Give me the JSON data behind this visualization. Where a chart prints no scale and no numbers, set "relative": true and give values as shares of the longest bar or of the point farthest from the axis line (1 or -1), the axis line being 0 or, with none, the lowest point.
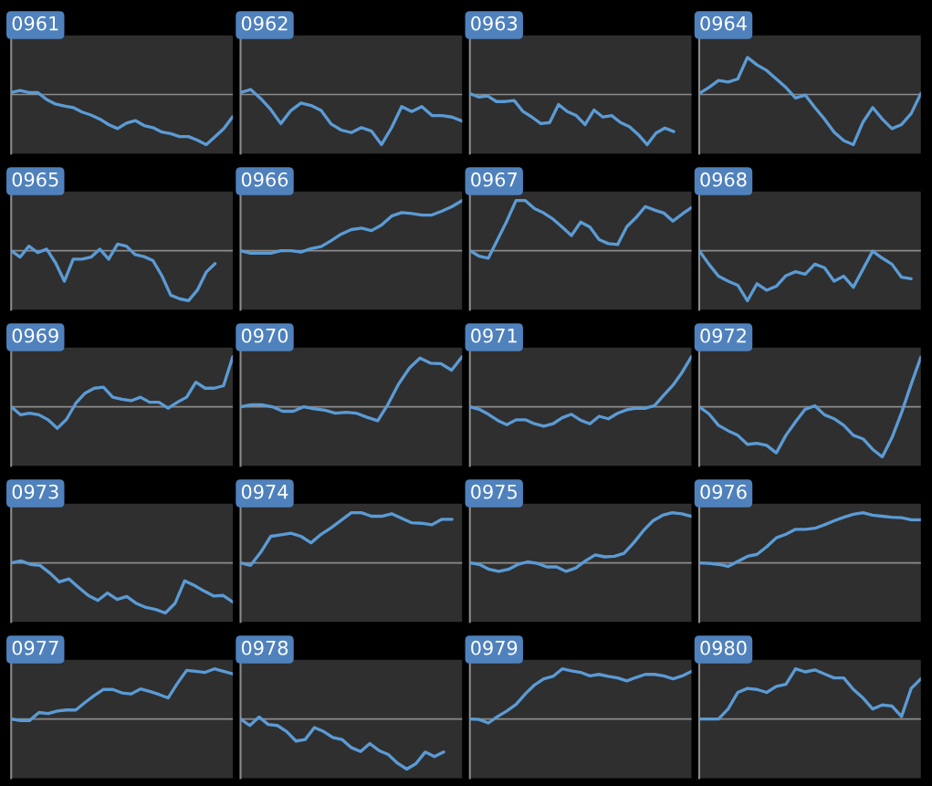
{
  "chart_data": [
    {
      "type": "line",
      "title": "0961",
      "relative": true,
      "color": "#5b9bd5",
      "ref_lines": [
        {
          "axis": "y",
          "value": 0,
          "color": "#8c8c8c"
        }
      ],
      "categories": [
        null,
        null,
        null,
        null,
        null,
        null,
        null,
        null,
        null,
        null,
        null,
        null,
        null,
        null,
        null,
        null,
        null,
        null,
        null,
        null,
        null,
        null,
        null,
        null,
        null,
        null
      ],
      "values": [
        0.04,
        0.08,
        0.04,
        0.04,
        -0.1,
        -0.19,
        -0.23,
        -0.26,
        -0.35,
        -0.41,
        -0.49,
        -0.6,
        -0.68,
        -0.57,
        -0.52,
        -0.62,
        -0.66,
        -0.75,
        -0.78,
        -0.84,
        -0.84,
        -0.91,
        -1,
        -0.84,
        -0.68,
        -0.44
      ]
    },
    {
      "type": "line",
      "title": "0962",
      "relative": true,
      "color": "#5b9bd5",
      "ref_lines": [
        {
          "axis": "y",
          "value": 0,
          "color": "#8c8c8c"
        }
      ],
      "categories": [
        null,
        null,
        null,
        null,
        null,
        null,
        null,
        null,
        null,
        null,
        null,
        null,
        null,
        null,
        null,
        null,
        null,
        null,
        null,
        null,
        null,
        null,
        null
      ],
      "values": [
        0.04,
        0.1,
        -0.08,
        -0.3,
        -0.58,
        -0.32,
        -0.17,
        -0.22,
        -0.32,
        -0.59,
        -0.71,
        -0.76,
        -0.66,
        -0.73,
        -1,
        -0.66,
        -0.24,
        -0.34,
        -0.24,
        -0.42,
        -0.42,
        -0.45,
        -0.53
      ]
    },
    {
      "type": "line",
      "title": "0963",
      "relative": true,
      "color": "#5b9bd5",
      "ref_lines": [
        {
          "axis": "y",
          "value": 0,
          "color": "#8c8c8c"
        }
      ],
      "categories": [
        null,
        null,
        null,
        null,
        null,
        null,
        null,
        null,
        null,
        null,
        null,
        null,
        null,
        null,
        null,
        null,
        null,
        null,
        null,
        null,
        null,
        null,
        null,
        null,
        null,
        null
      ],
      "values": [
        0.02,
        -0.05,
        -0.03,
        -0.14,
        -0.14,
        -0.12,
        -0.34,
        -0.45,
        -0.58,
        -0.56,
        -0.2,
        -0.34,
        -0.42,
        -0.6,
        -0.31,
        -0.45,
        -0.42,
        -0.56,
        -0.64,
        -0.8,
        -1,
        -0.77,
        -0.67,
        -0.74,
        null,
        null
      ]
    },
    {
      "type": "line",
      "title": "0964",
      "relative": true,
      "color": "#5b9bd5",
      "ref_lines": [
        {
          "axis": "y",
          "value": 0,
          "color": "#8c8c8c"
        }
      ],
      "categories": [
        null,
        null,
        null,
        null,
        null,
        null,
        null,
        null,
        null,
        null,
        null,
        null,
        null,
        null,
        null,
        null,
        null,
        null,
        null,
        null,
        null,
        null,
        null,
        null
      ],
      "values": [
        0.02,
        0.14,
        0.28,
        0.25,
        0.31,
        0.74,
        0.59,
        0.48,
        0.31,
        0.14,
        -0.07,
        -0.01,
        -0.26,
        -0.49,
        -0.75,
        -0.92,
        -1,
        -0.55,
        -0.26,
        -0.49,
        -0.68,
        -0.6,
        -0.38,
        0.02
      ]
    },
    {
      "type": "line",
      "title": "0965",
      "relative": true,
      "color": "#5b9bd5",
      "ref_lines": [
        {
          "axis": "y",
          "value": 0,
          "color": "#8c8c8c"
        }
      ],
      "categories": [
        null,
        null,
        null,
        null,
        null,
        null,
        null,
        null,
        null,
        null,
        null,
        null,
        null,
        null,
        null,
        null,
        null,
        null,
        null,
        null,
        null,
        null,
        null,
        null,
        null,
        null
      ],
      "values": [
        0,
        -0.13,
        0.09,
        -0.04,
        0.03,
        -0.24,
        -0.61,
        -0.17,
        -0.17,
        -0.13,
        0.03,
        -0.17,
        0.13,
        0.09,
        -0.08,
        -0.12,
        -0.2,
        -0.5,
        -0.89,
        -0.96,
        -1,
        -0.79,
        -0.43,
        -0.26,
        null,
        null
      ]
    },
    {
      "type": "line",
      "title": "0966",
      "relative": true,
      "color": "#5b9bd5",
      "ref_lines": [
        {
          "axis": "y",
          "value": 0,
          "color": "#8c8c8c"
        }
      ],
      "categories": [
        null,
        null,
        null,
        null,
        null,
        null,
        null,
        null,
        null,
        null,
        null,
        null,
        null,
        null,
        null,
        null,
        null,
        null,
        null,
        null,
        null,
        null,
        null
      ],
      "values": [
        0,
        -0.05,
        -0.05,
        -0.05,
        0,
        0,
        -0.03,
        0.04,
        0.08,
        0.2,
        0.33,
        0.42,
        0.45,
        0.4,
        0.51,
        0.69,
        0.76,
        0.74,
        0.71,
        0.71,
        0.79,
        0.88,
        1
      ]
    },
    {
      "type": "line",
      "title": "0967",
      "relative": true,
      "color": "#5b9bd5",
      "ref_lines": [
        {
          "axis": "y",
          "value": 0,
          "color": "#8c8c8c"
        }
      ],
      "categories": [
        null,
        null,
        null,
        null,
        null,
        null,
        null,
        null,
        null,
        null,
        null,
        null,
        null,
        null,
        null,
        null,
        null,
        null,
        null,
        null,
        null,
        null,
        null,
        null,
        null
      ],
      "values": [
        0,
        -0.11,
        -0.15,
        0.22,
        0.59,
        1,
        1,
        0.84,
        0.75,
        0.63,
        0.47,
        0.3,
        0.57,
        0.47,
        0.22,
        0.14,
        0.12,
        0.48,
        0.66,
        0.88,
        0.81,
        0.75,
        0.59,
        0.73,
        0.86
      ]
    },
    {
      "type": "line",
      "title": "0968",
      "relative": true,
      "color": "#5b9bd5",
      "ref_lines": [
        {
          "axis": "y",
          "value": 0,
          "color": "#8c8c8c"
        }
      ],
      "categories": [
        null,
        null,
        null,
        null,
        null,
        null,
        null,
        null,
        null,
        null,
        null,
        null,
        null,
        null,
        null,
        null,
        null,
        null,
        null,
        null,
        null,
        null,
        null,
        null
      ],
      "values": [
        0,
        -0.27,
        -0.51,
        -0.61,
        -0.69,
        -1,
        -0.66,
        -0.79,
        -0.71,
        -0.5,
        -0.42,
        -0.47,
        -0.27,
        -0.34,
        -0.61,
        -0.51,
        -0.73,
        -0.37,
        -0.01,
        -0.15,
        -0.27,
        -0.53,
        -0.56,
        null
      ]
    },
    {
      "type": "line",
      "title": "0969",
      "relative": true,
      "color": "#5b9bd5",
      "ref_lines": [
        {
          "axis": "y",
          "value": 0,
          "color": "#8c8c8c"
        }
      ],
      "categories": [
        null,
        null,
        null,
        null,
        null,
        null,
        null,
        null,
        null,
        null,
        null,
        null,
        null,
        null,
        null,
        null,
        null,
        null,
        null,
        null,
        null,
        null,
        null,
        null,
        null
      ],
      "values": [
        0,
        -0.16,
        -0.13,
        -0.16,
        -0.26,
        -0.43,
        -0.25,
        0.07,
        0.27,
        0.37,
        0.39,
        0.19,
        0.15,
        0.12,
        0.19,
        0.09,
        0.09,
        -0.03,
        0.09,
        0.19,
        0.49,
        0.37,
        0.37,
        0.42,
        1
      ]
    },
    {
      "type": "line",
      "title": "0970",
      "relative": true,
      "color": "#5b9bd5",
      "ref_lines": [
        {
          "axis": "y",
          "value": 0,
          "color": "#8c8c8c"
        }
      ],
      "categories": [
        null,
        null,
        null,
        null,
        null,
        null,
        null,
        null,
        null,
        null,
        null,
        null,
        null,
        null,
        null,
        null,
        null,
        null,
        null,
        null,
        null,
        null
      ],
      "values": [
        0,
        0.04,
        0.04,
        0,
        -0.09,
        -0.09,
        0,
        -0.04,
        -0.07,
        -0.13,
        -0.11,
        -0.13,
        -0.21,
        -0.28,
        0.06,
        0.46,
        0.77,
        0.97,
        0.87,
        0.86,
        0.73,
        1
      ]
    },
    {
      "type": "line",
      "title": "0971",
      "relative": true,
      "color": "#5b9bd5",
      "ref_lines": [
        {
          "axis": "y",
          "value": 0,
          "color": "#8c8c8c"
        }
      ],
      "categories": [
        null,
        null,
        null,
        null,
        null,
        null,
        null,
        null,
        null,
        null,
        null,
        null,
        null,
        null,
        null,
        null,
        null,
        null,
        null,
        null,
        null,
        null,
        null,
        null,
        null
      ],
      "values": [
        0,
        -0.05,
        -0.15,
        -0.27,
        -0.36,
        -0.26,
        -0.26,
        -0.34,
        -0.39,
        -0.34,
        -0.22,
        -0.15,
        -0.27,
        -0.34,
        -0.19,
        -0.24,
        -0.13,
        -0.06,
        -0.03,
        -0.03,
        0.02,
        0.23,
        0.43,
        0.69,
        1
      ]
    },
    {
      "type": "line",
      "title": "0972",
      "relative": true,
      "color": "#5b9bd5",
      "ref_lines": [
        {
          "axis": "y",
          "value": 0,
          "color": "#8c8c8c"
        }
      ],
      "categories": [
        null,
        null,
        null,
        null,
        null,
        null,
        null,
        null,
        null,
        null,
        null,
        null,
        null,
        null,
        null,
        null,
        null,
        null,
        null,
        null,
        null,
        null,
        null,
        null
      ],
      "values": [
        0,
        -0.14,
        -0.37,
        -0.48,
        -0.57,
        -0.75,
        -0.73,
        -0.77,
        -0.92,
        -0.57,
        -0.3,
        -0.05,
        0.02,
        -0.16,
        -0.24,
        -0.37,
        -0.57,
        -0.64,
        -0.85,
        -1,
        -0.62,
        -0.12,
        0.45,
        0.99
      ]
    },
    {
      "type": "line",
      "title": "0973",
      "relative": true,
      "color": "#5b9bd5",
      "ref_lines": [
        {
          "axis": "y",
          "value": 0,
          "color": "#8c8c8c"
        }
      ],
      "categories": [
        null,
        null,
        null,
        null,
        null,
        null,
        null,
        null,
        null,
        null,
        null,
        null,
        null,
        null,
        null,
        null,
        null,
        null,
        null,
        null,
        null,
        null,
        null,
        null
      ],
      "values": [
        0,
        0.04,
        -0.03,
        -0.05,
        -0.2,
        -0.38,
        -0.32,
        -0.49,
        -0.65,
        -0.75,
        -0.6,
        -0.73,
        -0.67,
        -0.81,
        -0.89,
        -0.93,
        -1,
        -0.81,
        -0.36,
        -0.45,
        -0.56,
        -0.66,
        -0.65,
        -0.78
      ]
    },
    {
      "type": "line",
      "title": "0974",
      "relative": true,
      "color": "#5b9bd5",
      "ref_lines": [
        {
          "axis": "y",
          "value": 0,
          "color": "#8c8c8c"
        }
      ],
      "categories": [
        null,
        null,
        null,
        null,
        null,
        null,
        null,
        null,
        null,
        null,
        null,
        null,
        null,
        null,
        null,
        null,
        null,
        null,
        null,
        null,
        null,
        null,
        null
      ],
      "values": [
        0,
        -0.05,
        0.21,
        0.53,
        0.56,
        0.59,
        0.53,
        0.4,
        0.57,
        0.7,
        0.85,
        1,
        1,
        0.93,
        0.93,
        0.98,
        0.89,
        0.8,
        0.79,
        0.76,
        0.87,
        0.87,
        null
      ]
    },
    {
      "type": "line",
      "title": "0975",
      "relative": true,
      "color": "#5b9bd5",
      "ref_lines": [
        {
          "axis": "y",
          "value": 0,
          "color": "#8c8c8c"
        }
      ],
      "categories": [
        null,
        null,
        null,
        null,
        null,
        null,
        null,
        null,
        null,
        null,
        null,
        null,
        null,
        null,
        null,
        null,
        null,
        null,
        null,
        null,
        null,
        null,
        null,
        null
      ],
      "values": [
        0,
        -0.03,
        -0.13,
        -0.17,
        -0.13,
        -0.03,
        0.02,
        -0.01,
        -0.08,
        -0.08,
        -0.17,
        -0.1,
        0.04,
        0.16,
        0.12,
        0.13,
        0.19,
        0.4,
        0.64,
        0.84,
        0.95,
        1,
        0.98,
        0.93
      ]
    },
    {
      "type": "line",
      "title": "0976",
      "relative": true,
      "color": "#5b9bd5",
      "ref_lines": [
        {
          "axis": "y",
          "value": 0,
          "color": "#8c8c8c"
        }
      ],
      "categories": [
        null,
        null,
        null,
        null,
        null,
        null,
        null,
        null,
        null,
        null,
        null,
        null,
        null,
        null,
        null,
        null,
        null,
        null,
        null,
        null,
        null,
        null,
        null,
        null
      ],
      "values": [
        0,
        -0.01,
        -0.03,
        -0.07,
        0.03,
        0.13,
        0.17,
        0.32,
        0.5,
        0.57,
        0.67,
        0.67,
        0.69,
        0.76,
        0.84,
        0.91,
        0.97,
        1,
        0.95,
        0.93,
        0.91,
        0.9,
        0.86,
        0.86
      ]
    },
    {
      "type": "line",
      "title": "0977",
      "relative": true,
      "color": "#5b9bd5",
      "ref_lines": [
        {
          "axis": "y",
          "value": 0,
          "color": "#8c8c8c"
        }
      ],
      "categories": [
        null,
        null,
        null,
        null,
        null,
        null,
        null,
        null,
        null,
        null,
        null,
        null,
        null,
        null,
        null,
        null,
        null,
        null,
        null,
        null,
        null,
        null,
        null,
        null,
        null
      ],
      "values": [
        0,
        -0.03,
        -0.03,
        0.13,
        0.11,
        0.16,
        0.18,
        0.18,
        0.33,
        0.47,
        0.59,
        0.59,
        0.52,
        0.5,
        0.6,
        0.55,
        0.49,
        0.42,
        0.71,
        0.97,
        0.95,
        0.93,
        1,
        0.95,
        0.9
      ]
    },
    {
      "type": "line",
      "title": "0978",
      "relative": true,
      "color": "#5b9bd5",
      "ref_lines": [
        {
          "axis": "y",
          "value": 0,
          "color": "#8c8c8c"
        }
      ],
      "categories": [
        null,
        null,
        null,
        null,
        null,
        null,
        null,
        null,
        null,
        null,
        null,
        null,
        null,
        null,
        null,
        null,
        null,
        null,
        null,
        null,
        null,
        null,
        null,
        null,
        null
      ],
      "values": [
        0,
        -0.13,
        0.04,
        -0.11,
        -0.13,
        -0.25,
        -0.44,
        -0.41,
        -0.17,
        -0.25,
        -0.37,
        -0.41,
        -0.57,
        -0.65,
        -0.49,
        -0.63,
        -0.71,
        -0.88,
        -1,
        -0.89,
        -0.66,
        -0.75,
        -0.66,
        null,
        null
      ]
    },
    {
      "type": "line",
      "title": "0979",
      "relative": true,
      "color": "#5b9bd5",
      "ref_lines": [
        {
          "axis": "y",
          "value": 0,
          "color": "#8c8c8c"
        }
      ],
      "categories": [
        null,
        null,
        null,
        null,
        null,
        null,
        null,
        null,
        null,
        null,
        null,
        null,
        null,
        null,
        null,
        null,
        null,
        null,
        null,
        null,
        null,
        null,
        null,
        null,
        null
      ],
      "values": [
        0,
        -0.01,
        -0.08,
        0.05,
        0.16,
        0.29,
        0.5,
        0.68,
        0.8,
        0.85,
        1,
        0.96,
        0.93,
        0.86,
        0.89,
        0.85,
        0.82,
        0.76,
        0.83,
        0.89,
        0.89,
        0.86,
        0.8,
        0.86,
        0.95
      ]
    },
    {
      "type": "line",
      "title": "0980",
      "relative": true,
      "color": "#5b9bd5",
      "ref_lines": [
        {
          "axis": "y",
          "value": 0,
          "color": "#8c8c8c"
        }
      ],
      "categories": [
        null,
        null,
        null,
        null,
        null,
        null,
        null,
        null,
        null,
        null,
        null,
        null,
        null,
        null,
        null,
        null,
        null,
        null,
        null,
        null,
        null,
        null,
        null,
        null
      ],
      "values": [
        0,
        0,
        0,
        0.2,
        0.53,
        0.61,
        0.59,
        0.53,
        0.65,
        0.69,
        1,
        0.94,
        0.98,
        0.9,
        0.82,
        0.82,
        0.59,
        0.42,
        0.2,
        0.28,
        0.26,
        0.05,
        0.61,
        0.8
      ]
    }
  ]
}
